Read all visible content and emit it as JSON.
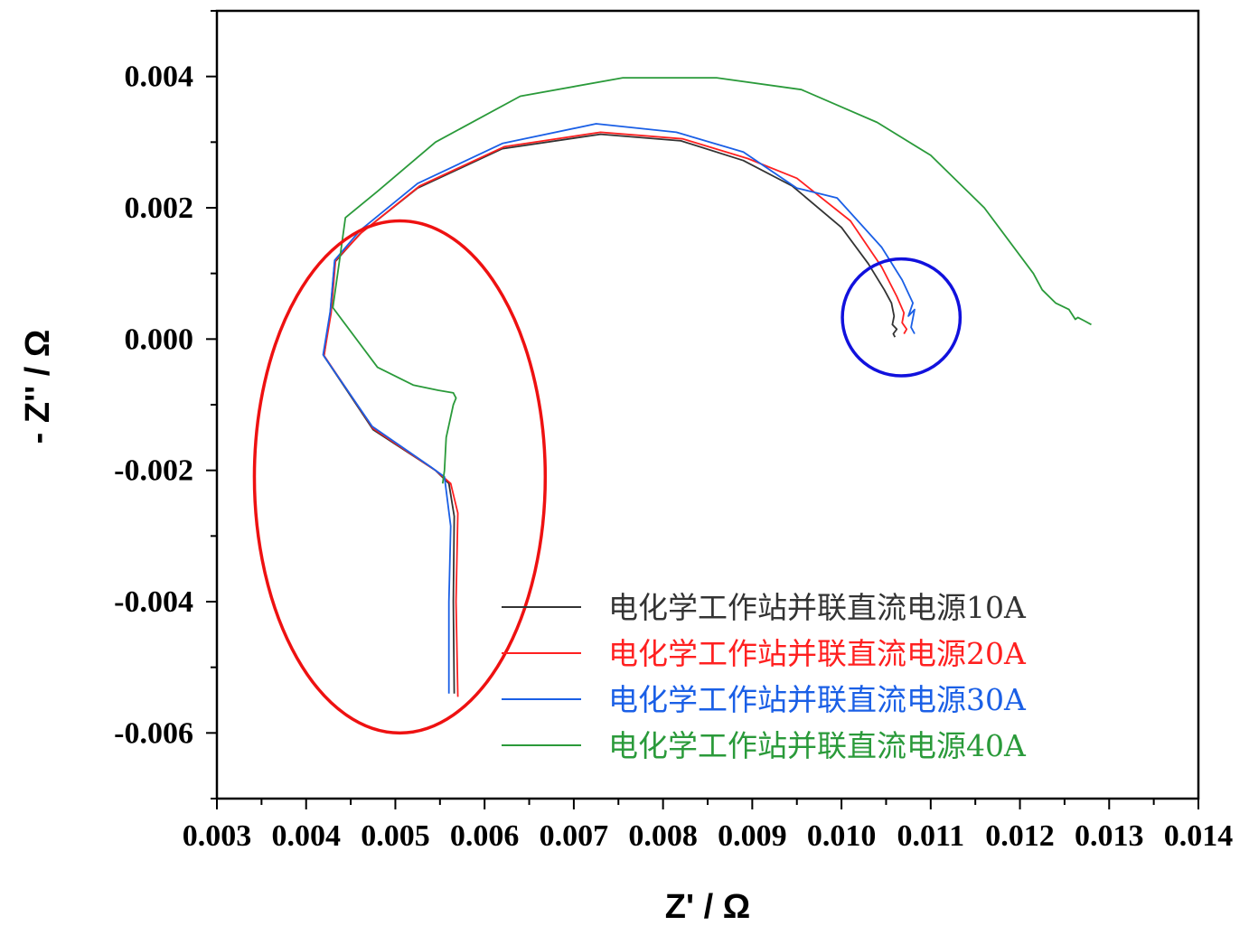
{
  "chart_data": {
    "type": "line",
    "xlabel": "Z' / Ω",
    "ylabel": "- Z'' / Ω",
    "xlim": [
      0.003,
      0.014
    ],
    "ylim": [
      -0.007,
      0.005
    ],
    "x_ticks": [
      "0.003",
      "0.004",
      "0.005",
      "0.006",
      "0.007",
      "0.008",
      "0.009",
      "0.010",
      "0.011",
      "0.012",
      "0.013",
      "0.014"
    ],
    "y_ticks": [
      "0.004",
      "0.002",
      "0.000",
      "-0.002",
      "-0.004",
      "-0.006"
    ],
    "grid": false,
    "legend_position": "bottom-right",
    "series": [
      {
        "name": "电化学工作站并联直流电源10A",
        "color": "#333333",
        "x": [
          0.00566,
          0.00565,
          0.00566,
          0.0056,
          0.00545,
          0.00475,
          0.0042,
          0.00427,
          0.00432,
          0.0046,
          0.00525,
          0.0062,
          0.0073,
          0.0082,
          0.0089,
          0.00945,
          0.01,
          0.0103,
          0.01048,
          0.01056,
          0.01059,
          0.01057,
          0.01062,
          0.01058,
          0.0106
        ],
        "y": [
          -0.0054,
          -0.004,
          -0.0027,
          -0.0022,
          -0.002,
          -0.00138,
          -0.00026,
          0.0004,
          0.00117,
          0.0016,
          0.0023,
          0.0029,
          0.00312,
          0.00302,
          0.00272,
          0.00233,
          0.0017,
          0.00115,
          0.00075,
          0.00055,
          0.00035,
          0.00022,
          0.00015,
          8e-05,
          3e-05
        ]
      },
      {
        "name": "电化学工作站并联直流电源20A",
        "color": "#ff2020",
        "x": [
          0.0057,
          0.00568,
          0.0057,
          0.00562,
          0.00545,
          0.00475,
          0.0042,
          0.00428,
          0.00433,
          0.00462,
          0.00527,
          0.00622,
          0.0073,
          0.00822,
          0.00895,
          0.0095,
          0.0101,
          0.01045,
          0.01062,
          0.0107,
          0.01068,
          0.01073,
          0.0107
        ],
        "y": [
          -0.00545,
          -0.004,
          -0.00265,
          -0.0022,
          -0.002,
          -0.00136,
          -0.00025,
          0.0004,
          0.0012,
          0.00162,
          0.00233,
          0.00293,
          0.00315,
          0.00305,
          0.00275,
          0.00245,
          0.0018,
          0.0011,
          0.00065,
          0.0004,
          0.00025,
          0.00015,
          8e-05
        ]
      },
      {
        "name": "电化学工作站并联直流电源30A",
        "color": "#1a5fe6",
        "x": [
          0.0056,
          0.0056,
          0.00562,
          0.00555,
          0.0054,
          0.00474,
          0.00419,
          0.00427,
          0.00432,
          0.0046,
          0.00525,
          0.0062,
          0.00725,
          0.00815,
          0.0089,
          0.0095,
          0.00995,
          0.01045,
          0.01068,
          0.0108,
          0.01075,
          0.01082,
          0.01078,
          0.01082
        ],
        "y": [
          -0.0054,
          -0.004,
          -0.00285,
          -0.0021,
          -0.00195,
          -0.00133,
          -0.00024,
          0.00042,
          0.0012,
          0.00165,
          0.00237,
          0.00298,
          0.00328,
          0.00315,
          0.00285,
          0.0023,
          0.00215,
          0.0014,
          0.0009,
          0.00055,
          0.00035,
          0.00045,
          0.00018,
          8e-05
        ]
      },
      {
        "name": "电化学工作站并联直流电源40A",
        "color": "#2a9a3a",
        "x": [
          0.00553,
          0.00555,
          0.00557,
          0.00565,
          0.00568,
          0.00565,
          0.00548,
          0.0052,
          0.0048,
          0.0043,
          0.00438,
          0.00444,
          0.0048,
          0.00545,
          0.0064,
          0.00755,
          0.0086,
          0.00955,
          0.0104,
          0.011,
          0.0116,
          0.01215,
          0.01225,
          0.0124,
          0.01255,
          0.01262,
          0.01265,
          0.01272,
          0.0128
        ],
        "y": [
          -0.0022,
          -0.002,
          -0.0015,
          -0.001,
          -0.0009,
          -0.00082,
          -0.00078,
          -0.0007,
          -0.00043,
          0.00048,
          0.00125,
          0.00185,
          0.00225,
          0.003,
          0.0037,
          0.00398,
          0.00398,
          0.0038,
          0.0033,
          0.0028,
          0.002,
          0.001,
          0.00075,
          0.00055,
          0.00045,
          0.0003,
          0.00033,
          0.00028,
          0.00022
        ]
      }
    ],
    "annotations": [
      {
        "shape": "ellipse",
        "color": "#ee1111",
        "cx": 0.00505,
        "cy": -0.0021,
        "rx": 0.00163,
        "ry": 0.0039
      },
      {
        "shape": "ellipse",
        "color": "#1111dd",
        "cx": 0.01067,
        "cy": 0.00033,
        "rx": 0.00066,
        "ry": 0.00089
      }
    ]
  }
}
